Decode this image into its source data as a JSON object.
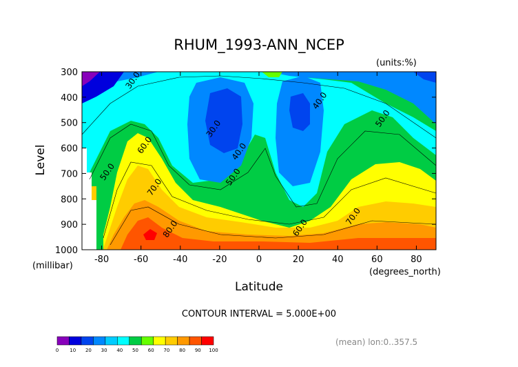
{
  "chart_data": {
    "type": "heatmap",
    "title": "RHUM_1993-ANN_NCEP",
    "units_label": "(units:%)",
    "xlabel": "Latitude",
    "ylabel": "Level",
    "x_unit_label": "(degrees_north)",
    "y_unit_label": "(millibar)",
    "x_ticks": [
      -80,
      -60,
      -40,
      -20,
      0,
      20,
      40,
      60,
      80
    ],
    "y_ticks": [
      300,
      400,
      500,
      600,
      700,
      800,
      900,
      1000
    ],
    "xlim": [
      -90,
      90
    ],
    "ylim": [
      1000,
      300
    ],
    "contour_interval_text": "CONTOUR INTERVAL = 5.000E+00",
    "mean_text": "(mean) lon:0..357.5",
    "colorbar": {
      "ticks": [
        "0",
        "10",
        "20",
        "30",
        "40",
        "50",
        "60",
        "70",
        "80",
        "90",
        "100"
      ],
      "colors": [
        "#8800bb",
        "#0000dd",
        "#0044ee",
        "#0088ff",
        "#00ccff",
        "#00ffff",
        "#00cc44",
        "#66ff00",
        "#ffff00",
        "#ffcc00",
        "#ff9900",
        "#ff5500",
        "#ff0000"
      ]
    },
    "contour_labels": [
      {
        "text": "30.0",
        "lat": -63,
        "lev": 340
      },
      {
        "text": "30.0",
        "lat": -22,
        "lev": 530
      },
      {
        "text": "40.0",
        "lat": -9,
        "lev": 620
      },
      {
        "text": "50.0",
        "lat": -12,
        "lev": 720
      },
      {
        "text": "40.0",
        "lat": 32,
        "lev": 420
      },
      {
        "text": "50.0",
        "lat": 64,
        "lev": 490
      },
      {
        "text": "60.0",
        "lat": -57,
        "lev": 595
      },
      {
        "text": "50.0",
        "lat": -76,
        "lev": 700
      },
      {
        "text": "70.0",
        "lat": -52,
        "lev": 760
      },
      {
        "text": "80.0",
        "lat": -44,
        "lev": 925
      },
      {
        "text": "60.0",
        "lat": 22,
        "lev": 920
      },
      {
        "text": "70.0",
        "lat": 49,
        "lev": 875
      }
    ]
  }
}
